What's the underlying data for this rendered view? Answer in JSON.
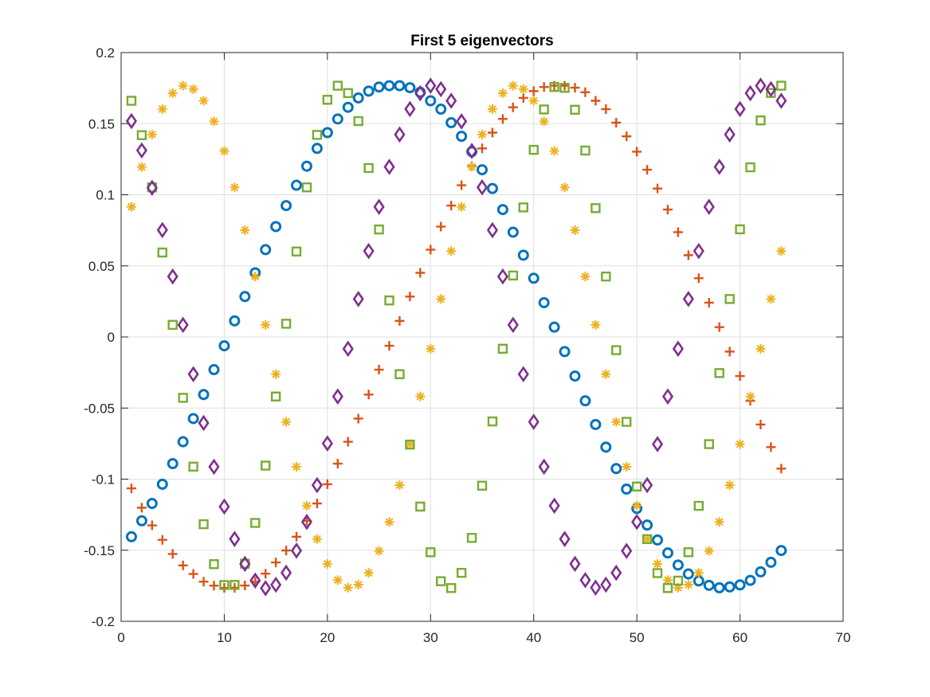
{
  "chart_data": {
    "type": "scatter",
    "title": "First 5 eigenvectors",
    "xlabel": "",
    "ylabel": "",
    "xlim": [
      0,
      70
    ],
    "ylim": [
      -0.2,
      0.2
    ],
    "xticks": [
      0,
      10,
      20,
      30,
      40,
      50,
      60,
      70
    ],
    "yticks": [
      -0.2,
      -0.15,
      -0.1,
      -0.05,
      0,
      0.05,
      0.1,
      0.15,
      0.2
    ],
    "xtick_labels": [
      "0",
      "10",
      "20",
      "30",
      "40",
      "50",
      "60",
      "70"
    ],
    "ytick_labels": [
      "-0.2",
      "-0.15",
      "-0.1",
      "-0.05",
      "0",
      "0.05",
      "0.1",
      "0.15",
      "0.2"
    ],
    "grid": true,
    "x": [
      1,
      2,
      3,
      4,
      5,
      6,
      7,
      8,
      9,
      10,
      11,
      12,
      13,
      14,
      15,
      16,
      17,
      18,
      19,
      20,
      21,
      22,
      23,
      24,
      25,
      26,
      27,
      28,
      29,
      30,
      31,
      32,
      33,
      34,
      35,
      36,
      37,
      38,
      39,
      40,
      41,
      42,
      43,
      44,
      45,
      46,
      47,
      48,
      49,
      50,
      51,
      52,
      53,
      54,
      55,
      56,
      57,
      58,
      59,
      60,
      61,
      62,
      63,
      64
    ],
    "series": [
      {
        "marker": "circle",
        "color": "#0072BD",
        "values": [
          -0.1405,
          -0.1293,
          -0.1171,
          -0.1036,
          -0.0891,
          -0.0737,
          -0.0574,
          -0.0405,
          -0.023,
          -0.0062,
          0.0113,
          0.0284,
          0.0451,
          0.0614,
          0.0776,
          0.0924,
          0.1067,
          0.1201,
          0.1326,
          0.1437,
          0.1533,
          0.1615,
          0.1681,
          0.1729,
          0.1758,
          0.1767,
          0.1767,
          0.1753,
          0.1721,
          0.1661,
          0.1602,
          0.1507,
          0.1411,
          0.1303,
          0.1176,
          0.1044,
          0.0896,
          0.0737,
          0.0575,
          0.0413,
          0.0241,
          0.0069,
          -0.0103,
          -0.0275,
          -0.0449,
          -0.0616,
          -0.0775,
          -0.0926,
          -0.107,
          -0.1206,
          -0.1323,
          -0.1428,
          -0.1519,
          -0.1604,
          -0.1667,
          -0.1716,
          -0.1747,
          -0.1764,
          -0.1758,
          -0.1744,
          -0.1712,
          -0.1652,
          -0.1585,
          -0.1502
        ]
      },
      {
        "marker": "plus",
        "color": "#D95319",
        "values": [
          -0.1065,
          -0.1201,
          -0.1325,
          -0.1427,
          -0.1526,
          -0.1607,
          -0.1667,
          -0.1721,
          -0.1749,
          -0.1765,
          -0.1764,
          -0.1748,
          -0.1721,
          -0.1665,
          -0.1586,
          -0.1502,
          -0.1405,
          -0.1293,
          -0.1171,
          -0.1036,
          -0.0891,
          -0.0737,
          -0.0574,
          -0.0405,
          -0.023,
          -0.0062,
          0.0113,
          0.0284,
          0.0451,
          0.0614,
          0.0776,
          0.0924,
          0.1067,
          0.1201,
          0.1326,
          0.1437,
          0.1533,
          0.1615,
          0.1681,
          0.1729,
          0.1758,
          0.1767,
          0.1767,
          0.1753,
          0.1721,
          0.1661,
          0.1602,
          0.1507,
          0.1411,
          0.1303,
          0.1176,
          0.1044,
          0.0896,
          0.0737,
          0.0575,
          0.0413,
          0.0241,
          0.0069,
          -0.0103,
          -0.0275,
          -0.0449,
          -0.0616,
          -0.0775,
          -0.0926
        ]
      },
      {
        "marker": "asterisk",
        "color": "#EDB120",
        "values": [
          0.0915,
          0.1196,
          0.1424,
          0.1603,
          0.1714,
          0.1767,
          0.1743,
          0.1661,
          0.1516,
          0.1308,
          0.1052,
          0.0751,
          0.0425,
          0.0085,
          -0.0262,
          -0.0597,
          -0.0913,
          -0.1187,
          -0.1421,
          -0.1596,
          -0.171,
          -0.1763,
          -0.1742,
          -0.1659,
          -0.1505,
          -0.1301,
          -0.1042,
          -0.0754,
          -0.0419,
          -0.0083,
          0.0267,
          0.0604,
          0.0915,
          0.1196,
          0.1424,
          0.1603,
          0.1714,
          0.1767,
          0.1743,
          0.1661,
          0.1516,
          0.1308,
          0.1052,
          0.0751,
          0.0425,
          0.0085,
          -0.0262,
          -0.0597,
          -0.0913,
          -0.1187,
          -0.1421,
          -0.1596,
          -0.171,
          -0.1763,
          -0.1742,
          -0.1659,
          -0.1505,
          -0.1301,
          -0.1042,
          -0.0754,
          -0.0419,
          -0.0083,
          0.0267,
          0.0604
        ]
      },
      {
        "marker": "square",
        "color": "#77AC30",
        "values": [
          0.1661,
          0.1419,
          0.1052,
          0.0594,
          0.0085,
          -0.0428,
          -0.0912,
          -0.1317,
          -0.1598,
          -0.1745,
          -0.1744,
          -0.1595,
          -0.1308,
          -0.0905,
          -0.0419,
          0.0093,
          0.0601,
          0.1052,
          0.1421,
          0.1668,
          0.1767,
          0.1715,
          0.1518,
          0.1188,
          0.0756,
          0.0257,
          -0.0262,
          -0.0757,
          -0.1193,
          -0.1514,
          -0.1718,
          -0.1766,
          -0.1659,
          -0.1413,
          -0.1046,
          -0.0594,
          -0.0083,
          0.0432,
          0.0911,
          0.1316,
          0.16,
          0.1758,
          0.1752,
          0.1598,
          0.1311,
          0.0906,
          0.0425,
          -0.0093,
          -0.0597,
          -0.1052,
          -0.1422,
          -0.1661,
          -0.1766,
          -0.1714,
          -0.1514,
          -0.1188,
          -0.0754,
          -0.0254,
          0.0267,
          0.0757,
          0.1193,
          0.1523,
          0.1716,
          0.1767
        ]
      },
      {
        "marker": "diamond",
        "color": "#7E2F8E",
        "values": [
          0.1518,
          0.1312,
          0.1049,
          0.0752,
          0.0425,
          0.0085,
          -0.0262,
          -0.0605,
          -0.0913,
          -0.1193,
          -0.1421,
          -0.1596,
          -0.1713,
          -0.1767,
          -0.1743,
          -0.1658,
          -0.1503,
          -0.1301,
          -0.1042,
          -0.0749,
          -0.0419,
          -0.0083,
          0.0267,
          0.0604,
          0.0915,
          0.1196,
          0.1424,
          0.1603,
          0.1714,
          0.1767,
          0.1743,
          0.1661,
          0.1516,
          0.1308,
          0.1052,
          0.0751,
          0.0425,
          0.0085,
          -0.0262,
          -0.0597,
          -0.0913,
          -0.1187,
          -0.1421,
          -0.1596,
          -0.171,
          -0.1763,
          -0.1742,
          -0.1659,
          -0.1505,
          -0.1301,
          -0.1042,
          -0.0754,
          -0.0419,
          -0.0083,
          0.0267,
          0.0604,
          0.0915,
          0.1196,
          0.1424,
          0.1603,
          0.1714,
          0.1767,
          0.1743,
          0.1661
        ]
      }
    ]
  }
}
